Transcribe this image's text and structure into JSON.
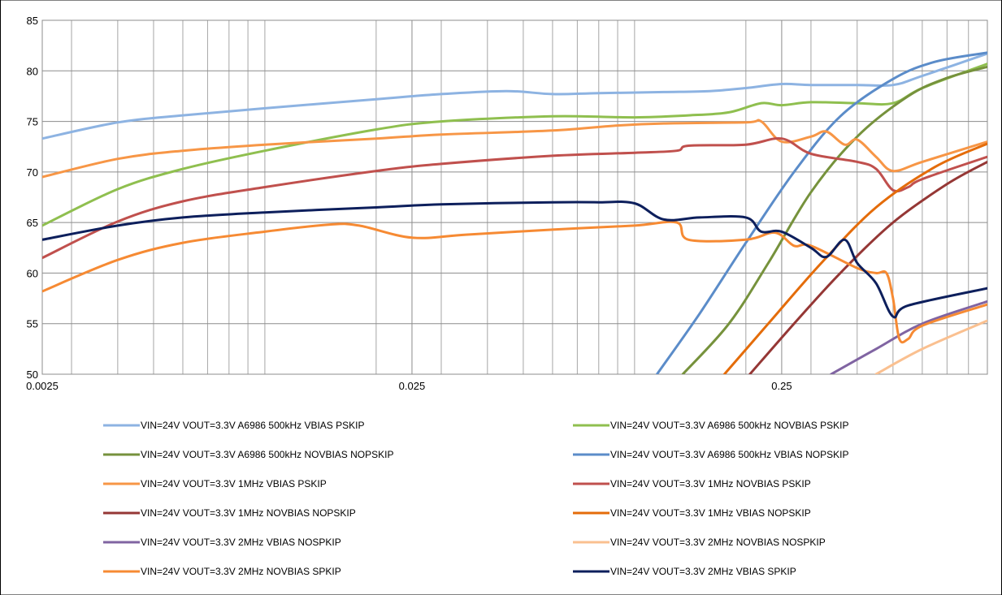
{
  "chart_data": {
    "type": "line",
    "title": "",
    "xlabel": "",
    "ylabel": "",
    "x_scale": "log",
    "xlim": [
      0.0025,
      0.9
    ],
    "ylim": [
      50,
      85
    ],
    "grid": true,
    "legend_position": "bottom",
    "x_tick_labels": [
      "0.0025",
      "0.025",
      "0.25"
    ],
    "y_tick_labels": [
      "50",
      "55",
      "60",
      "65",
      "70",
      "75",
      "80",
      "85"
    ],
    "x_ticks": [
      0.0025,
      0.025,
      0.25
    ],
    "y_ticks": [
      50,
      55,
      60,
      65,
      70,
      75,
      80,
      85
    ],
    "series": [
      {
        "name": "VIN=24V VOUT=3.3V  A6986 500kHz VBIAS PSKIP",
        "color": "#8db3e2",
        "points": [
          [
            0.0025,
            73.3
          ],
          [
            0.004,
            74.9
          ],
          [
            0.006,
            75.6
          ],
          [
            0.01,
            76.3
          ],
          [
            0.02,
            77.2
          ],
          [
            0.03,
            77.7
          ],
          [
            0.045,
            78.0
          ],
          [
            0.06,
            77.7
          ],
          [
            0.08,
            77.8
          ],
          [
            0.12,
            77.9
          ],
          [
            0.16,
            78.0
          ],
          [
            0.2,
            78.3
          ],
          [
            0.25,
            78.7
          ],
          [
            0.3,
            78.6
          ],
          [
            0.4,
            78.6
          ],
          [
            0.5,
            78.6
          ],
          [
            0.6,
            79.5
          ],
          [
            0.9,
            81.7
          ]
        ]
      },
      {
        "name": "VIN=24V VOUT=3.3V  A6986 500kHz NOVBIAS PSKIP",
        "color": "#8fbf4f",
        "points": [
          [
            0.0025,
            64.7
          ],
          [
            0.004,
            68.3
          ],
          [
            0.006,
            70.3
          ],
          [
            0.01,
            72.1
          ],
          [
            0.02,
            74.2
          ],
          [
            0.03,
            75.0
          ],
          [
            0.06,
            75.5
          ],
          [
            0.1,
            75.4
          ],
          [
            0.14,
            75.6
          ],
          [
            0.18,
            75.9
          ],
          [
            0.22,
            76.8
          ],
          [
            0.25,
            76.6
          ],
          [
            0.3,
            76.9
          ],
          [
            0.4,
            76.8
          ],
          [
            0.5,
            76.8
          ],
          [
            0.6,
            78.3
          ],
          [
            0.9,
            80.7
          ]
        ]
      },
      {
        "name": "VIN=24V VOUT=3.3V  A6986 500kHz NOVBIAS NOPSKIP",
        "color": "#76923c",
        "points": [
          [
            0.135,
            50
          ],
          [
            0.18,
            55
          ],
          [
            0.23,
            61
          ],
          [
            0.3,
            68
          ],
          [
            0.4,
            73.5
          ],
          [
            0.55,
            77.5
          ],
          [
            0.7,
            79.3
          ],
          [
            0.9,
            80.4
          ]
        ]
      },
      {
        "name": "VIN=24V VOUT=3.3V  A6986 500kHz VBIAS NOPSKIP",
        "color": "#5b8cc9",
        "points": [
          [
            0.115,
            50
          ],
          [
            0.15,
            56
          ],
          [
            0.2,
            63
          ],
          [
            0.27,
            70
          ],
          [
            0.36,
            75.5
          ],
          [
            0.5,
            79.2
          ],
          [
            0.65,
            80.9
          ],
          [
            0.9,
            81.8
          ]
        ]
      },
      {
        "name": "VIN=24V VOUT=3.3V  1MHz VBIAS PSKIP",
        "color": "#f79646",
        "points": [
          [
            0.0025,
            69.5
          ],
          [
            0.004,
            71.3
          ],
          [
            0.006,
            72.1
          ],
          [
            0.01,
            72.7
          ],
          [
            0.02,
            73.3
          ],
          [
            0.03,
            73.7
          ],
          [
            0.06,
            74.1
          ],
          [
            0.09,
            74.6
          ],
          [
            0.12,
            74.8
          ],
          [
            0.2,
            74.9
          ],
          [
            0.22,
            75.0
          ],
          [
            0.25,
            73.0
          ],
          [
            0.3,
            73.5
          ],
          [
            0.33,
            74.0
          ],
          [
            0.37,
            72.7
          ],
          [
            0.4,
            73.2
          ],
          [
            0.45,
            71.5
          ],
          [
            0.5,
            70.1
          ],
          [
            0.6,
            71.0
          ],
          [
            0.9,
            73.0
          ]
        ]
      },
      {
        "name": "VIN=24V VOUT=3.3V  1MHz NOVBIAS PSKIP",
        "color": "#c0504d",
        "points": [
          [
            0.0025,
            61.5
          ],
          [
            0.004,
            65.1
          ],
          [
            0.006,
            67.1
          ],
          [
            0.01,
            68.5
          ],
          [
            0.02,
            70.1
          ],
          [
            0.03,
            70.8
          ],
          [
            0.06,
            71.6
          ],
          [
            0.1,
            71.9
          ],
          [
            0.13,
            72.1
          ],
          [
            0.14,
            72.6
          ],
          [
            0.2,
            72.7
          ],
          [
            0.25,
            73.3
          ],
          [
            0.3,
            71.8
          ],
          [
            0.4,
            71.0
          ],
          [
            0.45,
            70.3
          ],
          [
            0.5,
            68.2
          ],
          [
            0.55,
            68.5
          ],
          [
            0.6,
            69.3
          ],
          [
            0.9,
            71.5
          ]
        ]
      },
      {
        "name": "VIN=24V VOUT=3.3V  1MHz NOVBIAS NOPSKIP",
        "color": "#953735",
        "points": [
          [
            0.205,
            50
          ],
          [
            0.27,
            55
          ],
          [
            0.36,
            60
          ],
          [
            0.5,
            65
          ],
          [
            0.7,
            68.8
          ],
          [
            0.9,
            71.0
          ]
        ]
      },
      {
        "name": "VIN=24V VOUT=3.3V  1MHz VBIAS NOPSKIP",
        "color": "#e46c0a",
        "points": [
          [
            0.175,
            50
          ],
          [
            0.23,
            55
          ],
          [
            0.32,
            61
          ],
          [
            0.45,
            66.5
          ],
          [
            0.65,
            70.5
          ],
          [
            0.9,
            72.8
          ]
        ]
      },
      {
        "name": "VIN=24V VOUT=3.3V  2MHz VBIAS NOSPKIP",
        "color": "#8064a2",
        "points": [
          [
            0.34,
            50
          ],
          [
            0.45,
            52.5
          ],
          [
            0.6,
            55
          ],
          [
            0.9,
            57.2
          ]
        ]
      },
      {
        "name": "VIN=24V VOUT=3.3V  2MHz NOVBIAS NOSPKIP",
        "color": "#fac090",
        "points": [
          [
            0.45,
            50
          ],
          [
            0.6,
            52.5
          ],
          [
            0.9,
            55.3
          ]
        ]
      },
      {
        "name": "VIN=24V VOUT=3.3V  2MHz NOVBIAS SPKIP",
        "color": "#f68a33",
        "points": [
          [
            0.0025,
            58.2
          ],
          [
            0.004,
            61.3
          ],
          [
            0.006,
            63.0
          ],
          [
            0.01,
            64.1
          ],
          [
            0.015,
            64.8
          ],
          [
            0.018,
            64.7
          ],
          [
            0.025,
            63.5
          ],
          [
            0.035,
            63.8
          ],
          [
            0.06,
            64.3
          ],
          [
            0.1,
            64.7
          ],
          [
            0.13,
            65.0
          ],
          [
            0.14,
            63.3
          ],
          [
            0.2,
            63.3
          ],
          [
            0.24,
            64.0
          ],
          [
            0.27,
            62.7
          ],
          [
            0.3,
            62.7
          ],
          [
            0.4,
            60.5
          ],
          [
            0.45,
            60.0
          ],
          [
            0.48,
            60.0
          ],
          [
            0.5,
            57.5
          ],
          [
            0.52,
            53.5
          ],
          [
            0.55,
            53.5
          ],
          [
            0.6,
            54.8
          ],
          [
            0.9,
            56.9
          ]
        ]
      },
      {
        "name": "VIN=24V VOUT=3.3V  2MHz VBIAS SPKIP",
        "color": "#0d1f5c",
        "points": [
          [
            0.0025,
            63.3
          ],
          [
            0.004,
            64.7
          ],
          [
            0.006,
            65.5
          ],
          [
            0.01,
            66.0
          ],
          [
            0.02,
            66.5
          ],
          [
            0.03,
            66.8
          ],
          [
            0.06,
            67.0
          ],
          [
            0.08,
            67.0
          ],
          [
            0.1,
            66.9
          ],
          [
            0.12,
            65.3
          ],
          [
            0.15,
            65.5
          ],
          [
            0.2,
            65.5
          ],
          [
            0.22,
            64.1
          ],
          [
            0.25,
            64.1
          ],
          [
            0.3,
            62.5
          ],
          [
            0.33,
            61.6
          ],
          [
            0.37,
            63.3
          ],
          [
            0.4,
            61.0
          ],
          [
            0.45,
            59.0
          ],
          [
            0.5,
            55.7
          ],
          [
            0.55,
            56.8
          ],
          [
            0.9,
            58.5
          ]
        ]
      }
    ]
  }
}
